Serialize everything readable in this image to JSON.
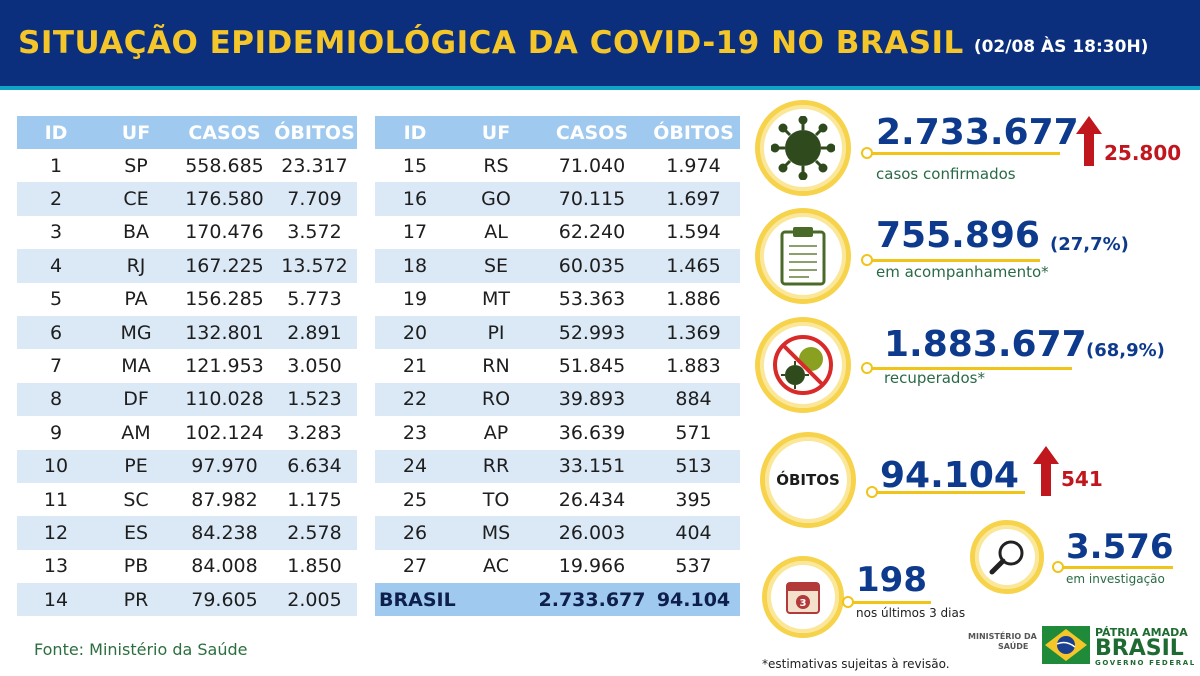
{
  "header": {
    "title": "SITUAÇÃO EPIDEMIOLÓGICA DA COVID-19 NO BRASIL",
    "date": "(02/08 ÀS 18:30H)"
  },
  "table_headers": {
    "id": "ID",
    "uf": "UF",
    "casos": "CASOS",
    "obitos": "ÓBITOS"
  },
  "table_left": [
    {
      "id": "1",
      "uf": "SP",
      "casos": "558.685",
      "obitos": "23.317"
    },
    {
      "id": "2",
      "uf": "CE",
      "casos": "176.580",
      "obitos": "7.709"
    },
    {
      "id": "3",
      "uf": "BA",
      "casos": "170.476",
      "obitos": "3.572"
    },
    {
      "id": "4",
      "uf": "RJ",
      "casos": "167.225",
      "obitos": "13.572"
    },
    {
      "id": "5",
      "uf": "PA",
      "casos": "156.285",
      "obitos": "5.773"
    },
    {
      "id": "6",
      "uf": "MG",
      "casos": "132.801",
      "obitos": "2.891"
    },
    {
      "id": "7",
      "uf": "MA",
      "casos": "121.953",
      "obitos": "3.050"
    },
    {
      "id": "8",
      "uf": "DF",
      "casos": "110.028",
      "obitos": "1.523"
    },
    {
      "id": "9",
      "uf": "AM",
      "casos": "102.124",
      "obitos": "3.283"
    },
    {
      "id": "10",
      "uf": "PE",
      "casos": "97.970",
      "obitos": "6.634"
    },
    {
      "id": "11",
      "uf": "SC",
      "casos": "87.982",
      "obitos": "1.175"
    },
    {
      "id": "12",
      "uf": "ES",
      "casos": "84.238",
      "obitos": "2.578"
    },
    {
      "id": "13",
      "uf": "PB",
      "casos": "84.008",
      "obitos": "1.850"
    },
    {
      "id": "14",
      "uf": "PR",
      "casos": "79.605",
      "obitos": "2.005"
    }
  ],
  "table_right": [
    {
      "id": "15",
      "uf": "RS",
      "casos": "71.040",
      "obitos": "1.974"
    },
    {
      "id": "16",
      "uf": "GO",
      "casos": "70.115",
      "obitos": "1.697"
    },
    {
      "id": "17",
      "uf": "AL",
      "casos": "62.240",
      "obitos": "1.594"
    },
    {
      "id": "18",
      "uf": "SE",
      "casos": "60.035",
      "obitos": "1.465"
    },
    {
      "id": "19",
      "uf": "MT",
      "casos": "53.363",
      "obitos": "1.886"
    },
    {
      "id": "20",
      "uf": "PI",
      "casos": "52.993",
      "obitos": "1.369"
    },
    {
      "id": "21",
      "uf": "RN",
      "casos": "51.845",
      "obitos": "1.883"
    },
    {
      "id": "22",
      "uf": "RO",
      "casos": "39.893",
      "obitos": "884"
    },
    {
      "id": "23",
      "uf": "AP",
      "casos": "36.639",
      "obitos": "571"
    },
    {
      "id": "24",
      "uf": "RR",
      "casos": "33.151",
      "obitos": "513"
    },
    {
      "id": "25",
      "uf": "TO",
      "casos": "26.434",
      "obitos": "395"
    },
    {
      "id": "26",
      "uf": "MS",
      "casos": "26.003",
      "obitos": "404"
    },
    {
      "id": "27",
      "uf": "AC",
      "casos": "19.966",
      "obitos": "537"
    }
  ],
  "total": {
    "label": "BRASIL",
    "casos": "2.733.677",
    "obitos": "94.104"
  },
  "source": "Fonte: Ministério da Saúde",
  "stats": {
    "confirmed": {
      "value": "2.733.677",
      "label": "casos confirmados",
      "delta": "25.800"
    },
    "monitoring": {
      "value": "755.896",
      "pct": "(27,7%)",
      "label": "em acompanhamento*"
    },
    "recovered": {
      "value": "1.883.677",
      "pct": "(68,9%)",
      "label": "recuperados*"
    },
    "deaths": {
      "badge": "ÓBITOS",
      "value": "94.104",
      "delta": "541"
    },
    "investigation": {
      "value": "3.576",
      "label": "em investigação"
    },
    "last_days": {
      "value": "198",
      "label": "nos últimos 3 dias",
      "calendar_number": "3"
    }
  },
  "footnote": "*estimativas sujeitas à revisão.",
  "ministry": {
    "line1": "MINISTÉRIO DA",
    "line2": "SAÚDE"
  },
  "logo": {
    "line1": "PÁTRIA AMADA",
    "line2": "BRASIL",
    "line3": "GOVERNO FEDERAL"
  },
  "colors": {
    "header_bg": "#0b2f7c",
    "title": "#f4c62a",
    "table_header": "#9fc9ee",
    "row_alt": "#dbe9f7",
    "number": "#0d3a8c",
    "caption": "#2a6a46",
    "delta": "#c0161d",
    "ring": "#f6d34a"
  },
  "icons": [
    "virus-icon",
    "clipboard-icon",
    "crossed-virus-icon",
    "magnifier-icon",
    "calendar-icon",
    "arrow-up-icon",
    "brazil-flag-icon"
  ]
}
